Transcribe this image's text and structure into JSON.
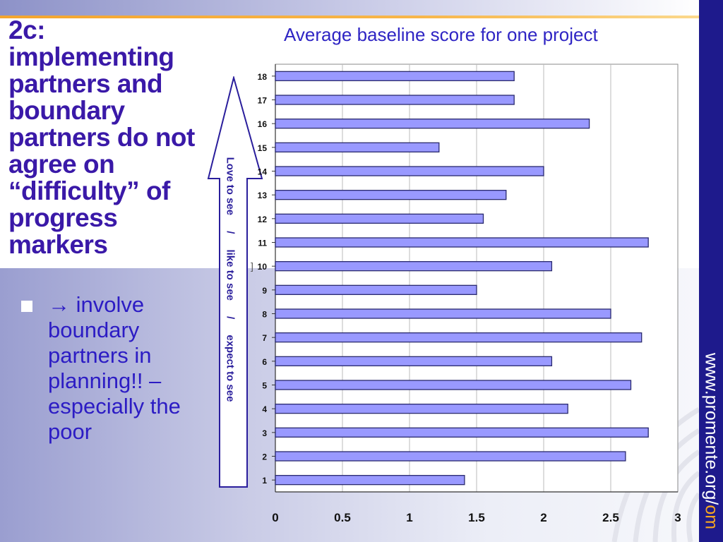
{
  "slide": {
    "title": "2c: implementing partners and boundary partners do not agree on “difficulty” of progress markers",
    "bullet": "→ involve boundary partners in planning!! – especially the poor",
    "arrow_parts": [
      "Love to see",
      "/",
      "like to see",
      "/",
      "expect to see"
    ],
    "bracket": "]",
    "url_main": "www.promente.org/",
    "url_accent": "om"
  },
  "colors": {
    "bar_fill": "#9999ff",
    "bar_stroke": "#2a2a6e",
    "title_purple": "#3a19a8",
    "band": "#1e1a8c",
    "accent_orange": "#f5a623"
  },
  "chart_data": {
    "type": "bar",
    "orientation": "horizontal",
    "title": "Average baseline score for one project",
    "categories": [
      "1",
      "2",
      "3",
      "4",
      "5",
      "6",
      "7",
      "8",
      "9",
      "10",
      "11",
      "12",
      "13",
      "14",
      "15",
      "16",
      "17",
      "18"
    ],
    "values": [
      1.41,
      2.61,
      2.78,
      2.18,
      2.65,
      2.06,
      2.73,
      2.5,
      1.5,
      2.06,
      2.78,
      1.55,
      1.72,
      2.0,
      1.22,
      2.34,
      1.78,
      1.78
    ],
    "xlim": [
      0,
      3
    ],
    "xticks": [
      "0",
      "0.5",
      "1",
      "1.5",
      "2",
      "2.5",
      "3"
    ],
    "xtick_values": [
      0,
      0.5,
      1,
      1.5,
      2,
      2.5,
      3
    ],
    "grid": true,
    "legend": "none"
  }
}
